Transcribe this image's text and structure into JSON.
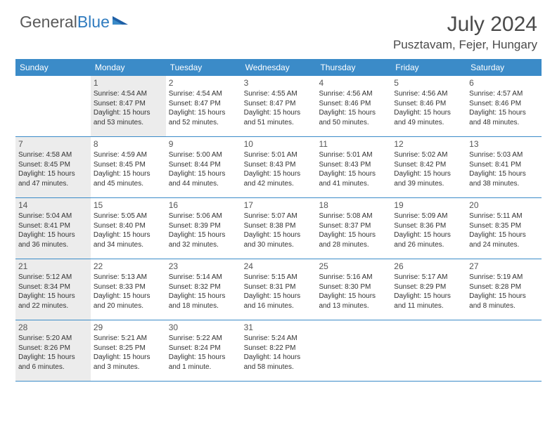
{
  "logo": {
    "text1": "General",
    "text2": "Blue"
  },
  "title": {
    "month_year": "July 2024",
    "location": "Pusztavam, Fejer, Hungary"
  },
  "colors": {
    "header_bg": "#3b8bc8",
    "header_text": "#ffffff",
    "shaded_bg": "#ececec",
    "border": "#3b8bc8",
    "logo_gray": "#5a5a5a",
    "logo_blue": "#2f7bbf",
    "text": "#333333"
  },
  "dow": [
    "Sunday",
    "Monday",
    "Tuesday",
    "Wednesday",
    "Thursday",
    "Friday",
    "Saturday"
  ],
  "weeks": [
    [
      {
        "num": "",
        "shaded": false,
        "lines": []
      },
      {
        "num": "1",
        "shaded": true,
        "lines": [
          "Sunrise: 4:54 AM",
          "Sunset: 8:47 PM",
          "Daylight: 15 hours",
          "and 53 minutes."
        ]
      },
      {
        "num": "2",
        "shaded": false,
        "lines": [
          "Sunrise: 4:54 AM",
          "Sunset: 8:47 PM",
          "Daylight: 15 hours",
          "and 52 minutes."
        ]
      },
      {
        "num": "3",
        "shaded": false,
        "lines": [
          "Sunrise: 4:55 AM",
          "Sunset: 8:47 PM",
          "Daylight: 15 hours",
          "and 51 minutes."
        ]
      },
      {
        "num": "4",
        "shaded": false,
        "lines": [
          "Sunrise: 4:56 AM",
          "Sunset: 8:46 PM",
          "Daylight: 15 hours",
          "and 50 minutes."
        ]
      },
      {
        "num": "5",
        "shaded": false,
        "lines": [
          "Sunrise: 4:56 AM",
          "Sunset: 8:46 PM",
          "Daylight: 15 hours",
          "and 49 minutes."
        ]
      },
      {
        "num": "6",
        "shaded": false,
        "lines": [
          "Sunrise: 4:57 AM",
          "Sunset: 8:46 PM",
          "Daylight: 15 hours",
          "and 48 minutes."
        ]
      }
    ],
    [
      {
        "num": "7",
        "shaded": true,
        "lines": [
          "Sunrise: 4:58 AM",
          "Sunset: 8:45 PM",
          "Daylight: 15 hours",
          "and 47 minutes."
        ]
      },
      {
        "num": "8",
        "shaded": false,
        "lines": [
          "Sunrise: 4:59 AM",
          "Sunset: 8:45 PM",
          "Daylight: 15 hours",
          "and 45 minutes."
        ]
      },
      {
        "num": "9",
        "shaded": false,
        "lines": [
          "Sunrise: 5:00 AM",
          "Sunset: 8:44 PM",
          "Daylight: 15 hours",
          "and 44 minutes."
        ]
      },
      {
        "num": "10",
        "shaded": false,
        "lines": [
          "Sunrise: 5:01 AM",
          "Sunset: 8:43 PM",
          "Daylight: 15 hours",
          "and 42 minutes."
        ]
      },
      {
        "num": "11",
        "shaded": false,
        "lines": [
          "Sunrise: 5:01 AM",
          "Sunset: 8:43 PM",
          "Daylight: 15 hours",
          "and 41 minutes."
        ]
      },
      {
        "num": "12",
        "shaded": false,
        "lines": [
          "Sunrise: 5:02 AM",
          "Sunset: 8:42 PM",
          "Daylight: 15 hours",
          "and 39 minutes."
        ]
      },
      {
        "num": "13",
        "shaded": false,
        "lines": [
          "Sunrise: 5:03 AM",
          "Sunset: 8:41 PM",
          "Daylight: 15 hours",
          "and 38 minutes."
        ]
      }
    ],
    [
      {
        "num": "14",
        "shaded": true,
        "lines": [
          "Sunrise: 5:04 AM",
          "Sunset: 8:41 PM",
          "Daylight: 15 hours",
          "and 36 minutes."
        ]
      },
      {
        "num": "15",
        "shaded": false,
        "lines": [
          "Sunrise: 5:05 AM",
          "Sunset: 8:40 PM",
          "Daylight: 15 hours",
          "and 34 minutes."
        ]
      },
      {
        "num": "16",
        "shaded": false,
        "lines": [
          "Sunrise: 5:06 AM",
          "Sunset: 8:39 PM",
          "Daylight: 15 hours",
          "and 32 minutes."
        ]
      },
      {
        "num": "17",
        "shaded": false,
        "lines": [
          "Sunrise: 5:07 AM",
          "Sunset: 8:38 PM",
          "Daylight: 15 hours",
          "and 30 minutes."
        ]
      },
      {
        "num": "18",
        "shaded": false,
        "lines": [
          "Sunrise: 5:08 AM",
          "Sunset: 8:37 PM",
          "Daylight: 15 hours",
          "and 28 minutes."
        ]
      },
      {
        "num": "19",
        "shaded": false,
        "lines": [
          "Sunrise: 5:09 AM",
          "Sunset: 8:36 PM",
          "Daylight: 15 hours",
          "and 26 minutes."
        ]
      },
      {
        "num": "20",
        "shaded": false,
        "lines": [
          "Sunrise: 5:11 AM",
          "Sunset: 8:35 PM",
          "Daylight: 15 hours",
          "and 24 minutes."
        ]
      }
    ],
    [
      {
        "num": "21",
        "shaded": true,
        "lines": [
          "Sunrise: 5:12 AM",
          "Sunset: 8:34 PM",
          "Daylight: 15 hours",
          "and 22 minutes."
        ]
      },
      {
        "num": "22",
        "shaded": false,
        "lines": [
          "Sunrise: 5:13 AM",
          "Sunset: 8:33 PM",
          "Daylight: 15 hours",
          "and 20 minutes."
        ]
      },
      {
        "num": "23",
        "shaded": false,
        "lines": [
          "Sunrise: 5:14 AM",
          "Sunset: 8:32 PM",
          "Daylight: 15 hours",
          "and 18 minutes."
        ]
      },
      {
        "num": "24",
        "shaded": false,
        "lines": [
          "Sunrise: 5:15 AM",
          "Sunset: 8:31 PM",
          "Daylight: 15 hours",
          "and 16 minutes."
        ]
      },
      {
        "num": "25",
        "shaded": false,
        "lines": [
          "Sunrise: 5:16 AM",
          "Sunset: 8:30 PM",
          "Daylight: 15 hours",
          "and 13 minutes."
        ]
      },
      {
        "num": "26",
        "shaded": false,
        "lines": [
          "Sunrise: 5:17 AM",
          "Sunset: 8:29 PM",
          "Daylight: 15 hours",
          "and 11 minutes."
        ]
      },
      {
        "num": "27",
        "shaded": false,
        "lines": [
          "Sunrise: 5:19 AM",
          "Sunset: 8:28 PM",
          "Daylight: 15 hours",
          "and 8 minutes."
        ]
      }
    ],
    [
      {
        "num": "28",
        "shaded": true,
        "lines": [
          "Sunrise: 5:20 AM",
          "Sunset: 8:26 PM",
          "Daylight: 15 hours",
          "and 6 minutes."
        ]
      },
      {
        "num": "29",
        "shaded": false,
        "lines": [
          "Sunrise: 5:21 AM",
          "Sunset: 8:25 PM",
          "Daylight: 15 hours",
          "and 3 minutes."
        ]
      },
      {
        "num": "30",
        "shaded": false,
        "lines": [
          "Sunrise: 5:22 AM",
          "Sunset: 8:24 PM",
          "Daylight: 15 hours",
          "and 1 minute."
        ]
      },
      {
        "num": "31",
        "shaded": false,
        "lines": [
          "Sunrise: 5:24 AM",
          "Sunset: 8:22 PM",
          "Daylight: 14 hours",
          "and 58 minutes."
        ]
      },
      {
        "num": "",
        "shaded": false,
        "lines": []
      },
      {
        "num": "",
        "shaded": false,
        "lines": []
      },
      {
        "num": "",
        "shaded": false,
        "lines": []
      }
    ]
  ]
}
